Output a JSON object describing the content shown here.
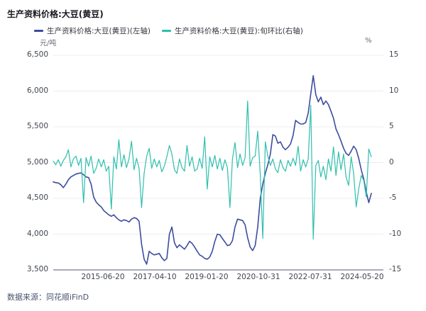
{
  "title": "生产资料价格:大豆(黄豆)",
  "legend": [
    {
      "label": "生产资料价格:大豆(黄豆)(左轴)",
      "color": "#3d4c9e"
    },
    {
      "label": "生产资料价格:大豆(黄豆):旬环比(右轴)",
      "color": "#2fbfad"
    }
  ],
  "axes": {
    "left_unit": "元/吨",
    "right_unit": "%",
    "left_ticks": [
      "6,500",
      "6,000",
      "5,500",
      "5,000",
      "4,500",
      "4,000",
      "3,500"
    ],
    "right_ticks": [
      "15",
      "10",
      "5",
      "0",
      "-5",
      "-10",
      "-15"
    ],
    "x_ticks": [
      "2015-06-20",
      "2017-04-10",
      "2019-01-20",
      "2020-10-31",
      "2022-07-31",
      "2024-05-20"
    ]
  },
  "source": "数据来源：同花顺iFinD",
  "chart_data": {
    "type": "line",
    "title": "生产资料价格:大豆(黄豆)",
    "x_start": "2013-10",
    "x_end": "2024-05-20",
    "x_tick_labels": [
      "2015-06-20",
      "2017-04-10",
      "2019-01-20",
      "2020-10-31",
      "2022-07-31",
      "2024-05-20"
    ],
    "left_ylim": [
      3500,
      6500
    ],
    "right_ylim": [
      -15,
      15
    ],
    "grid": true,
    "legend_position": "top",
    "series": [
      {
        "name": "生产资料价格:大豆(黄豆)(左轴)",
        "axis": "left",
        "unit": "元/吨",
        "color": "#3d4c9e",
        "values": [
          4730,
          4720,
          4715,
          4690,
          4650,
          4700,
          4760,
          4800,
          4820,
          4840,
          4850,
          4855,
          4830,
          4800,
          4790,
          4700,
          4520,
          4450,
          4410,
          4380,
          4330,
          4300,
          4270,
          4250,
          4270,
          4230,
          4200,
          4180,
          4200,
          4190,
          4170,
          4210,
          4230,
          4220,
          4180,
          3860,
          3650,
          3580,
          3760,
          3730,
          3710,
          3720,
          3730,
          3670,
          3630,
          3660,
          4000,
          4100,
          3880,
          3810,
          3850,
          3820,
          3790,
          3840,
          3900,
          3870,
          3820,
          3760,
          3710,
          3690,
          3660,
          3650,
          3680,
          3760,
          3900,
          4000,
          3990,
          3940,
          3890,
          3840,
          3850,
          3910,
          4100,
          4210,
          4200,
          4190,
          4130,
          3950,
          3820,
          3770,
          3840,
          4100,
          4500,
          4700,
          4850,
          4970,
          5120,
          5390,
          5370,
          5270,
          5290,
          5215,
          5180,
          5215,
          5260,
          5380,
          5590,
          5560,
          5540,
          5540,
          5560,
          5690,
          5960,
          6215,
          5950,
          5850,
          5915,
          5810,
          5860,
          5810,
          5720,
          5620,
          5470,
          5390,
          5300,
          5200,
          5130,
          5100,
          5160,
          5230,
          5180,
          5060,
          4900,
          4770,
          4590,
          4440,
          4570
        ]
      },
      {
        "name": "生产资料价格:大豆(黄豆):旬环比(右轴)",
        "axis": "right",
        "unit": "%",
        "color": "#2fbfad",
        "values": [
          0.2,
          -0.3,
          0.4,
          -0.5,
          0.3,
          0.8,
          1.8,
          -0.6,
          0.5,
          0.9,
          -0.4,
          0.6,
          -5.6,
          0.7,
          -0.5,
          0.9,
          -1.5,
          -0.8,
          0.5,
          -0.6,
          0.4,
          -1.2,
          -0.5,
          -6.5,
          0.8,
          -0.9,
          3.2,
          -0.6,
          1.1,
          -0.7,
          0.5,
          3.0,
          -1.0,
          0.6,
          -0.8,
          -6.3,
          -1.5,
          0.9,
          2.0,
          -0.8,
          0.5,
          -0.6,
          0.3,
          -1.3,
          -0.5,
          0.8,
          2.4,
          1.2,
          -1.0,
          -1.5,
          0.5,
          -0.7,
          -1.2,
          2.4,
          -0.5,
          0.8,
          -1.2,
          -0.9,
          0.6,
          -0.8,
          3.6,
          -3.7,
          0.8,
          -0.6,
          1.0,
          -0.9,
          0.6,
          -1.1,
          0.4,
          -0.7,
          -6.3,
          0.5,
          2.8,
          -0.7,
          1.2,
          -0.4,
          0.7,
          8.6,
          -0.5,
          0.7,
          0.9,
          4.4,
          -1.7,
          -10.6,
          2.9,
          0.9,
          -0.4,
          0.5,
          -0.9,
          -1.4,
          0.4,
          -0.7,
          -1.2,
          0.3,
          -0.5,
          0.6,
          -0.4,
          2.3,
          -1.2,
          0.4,
          -0.6,
          0.5,
          8.0,
          -10.7,
          -0.4,
          0.3,
          -2.0,
          -0.5,
          -2.4,
          0.5,
          -1.2,
          2.2,
          -1.8,
          1.5,
          -1.0,
          1.2,
          -2.0,
          -3.2,
          0.8,
          -1.5,
          -6.2,
          -3.7,
          -1.8,
          -2.5,
          -4.8,
          1.9,
          0.8
        ]
      }
    ]
  }
}
